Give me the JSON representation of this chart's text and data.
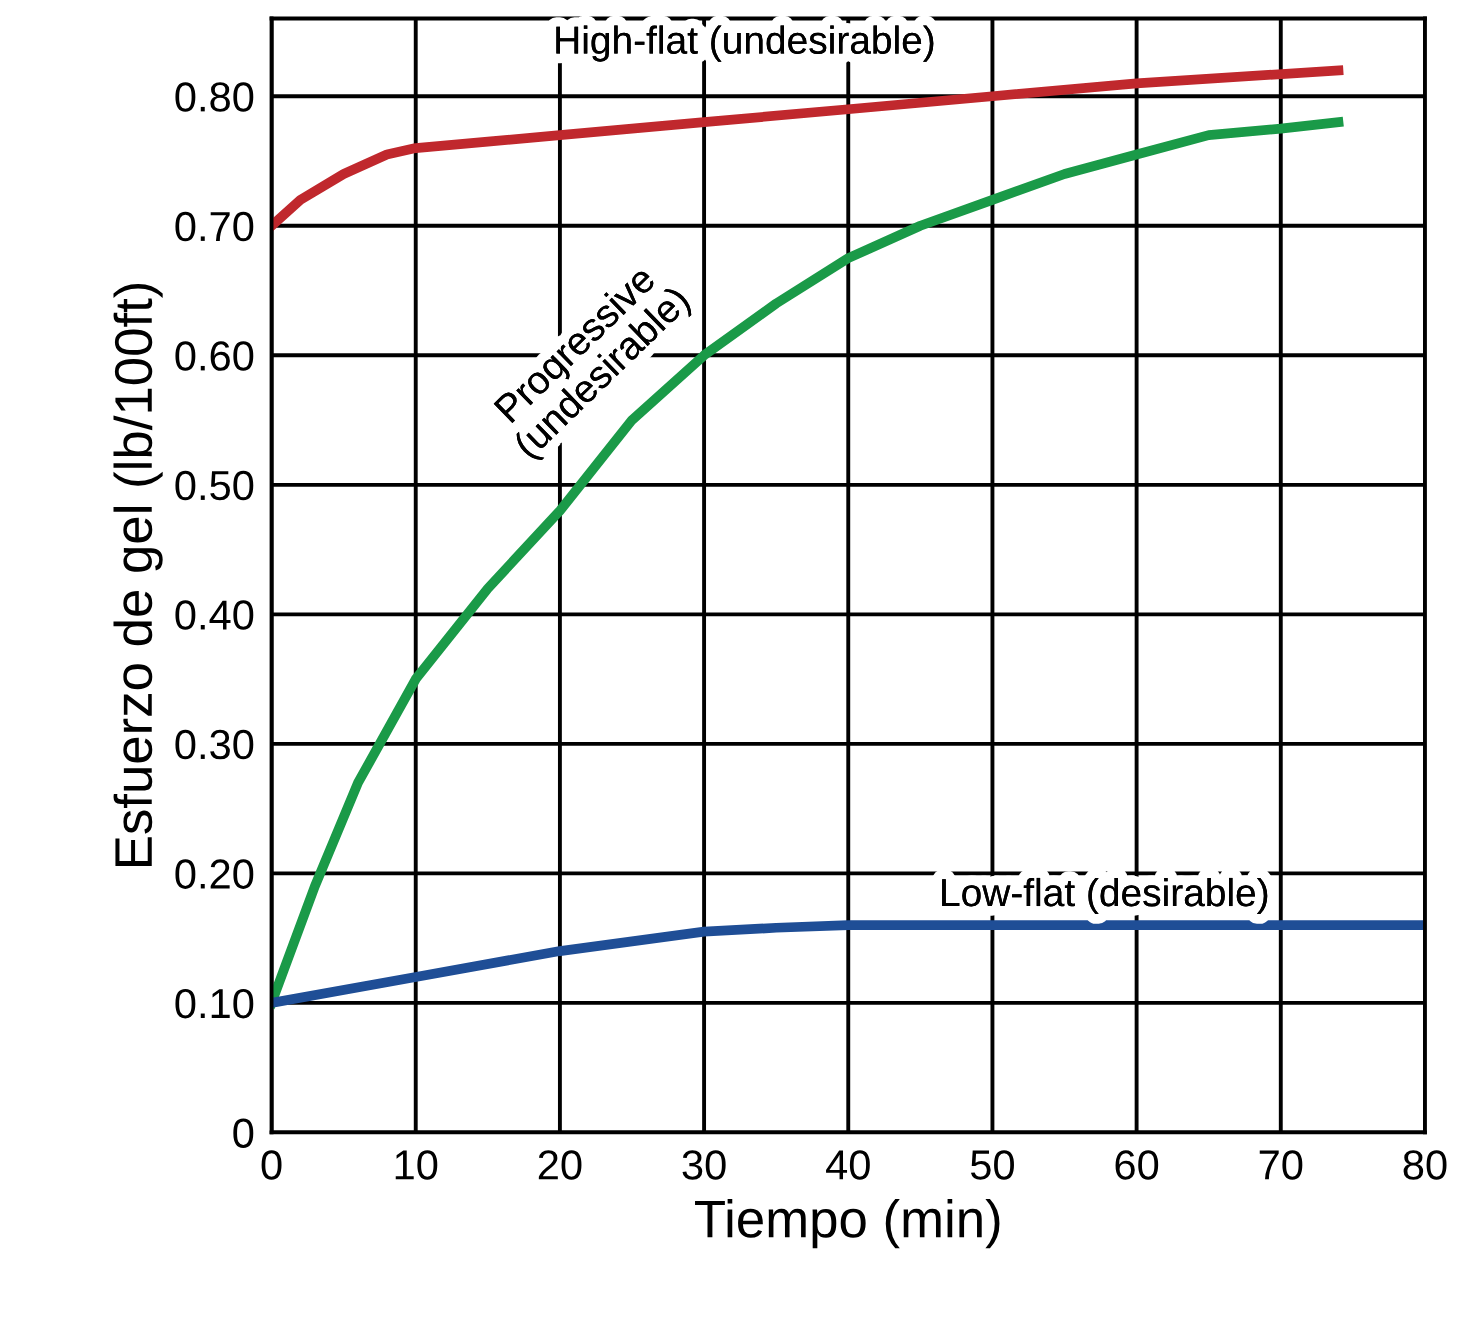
{
  "chart_data": {
    "type": "line",
    "xlabel": "Tiempo (min)",
    "ylabel": "Esfuerzo de gel (lb/100ft)",
    "series": [
      {
        "name": "High-flat (undesirable)",
        "color": "#c0282d",
        "x": [
          0,
          2,
          5,
          8,
          10,
          15,
          20,
          30,
          40,
          50,
          60,
          74
        ],
        "values": [
          0.7,
          0.72,
          0.74,
          0.755,
          0.76,
          0.765,
          0.77,
          0.78,
          0.79,
          0.8,
          0.81,
          0.82
        ]
      },
      {
        "name": "Progressive\n(undesirable)",
        "color": "#1a9a48",
        "x": [
          0,
          3,
          6,
          10,
          15,
          20,
          25,
          30,
          35,
          40,
          45,
          50,
          55,
          60,
          65,
          70,
          74
        ],
        "values": [
          0.1,
          0.19,
          0.27,
          0.35,
          0.42,
          0.48,
          0.55,
          0.6,
          0.64,
          0.675,
          0.7,
          0.72,
          0.74,
          0.755,
          0.77,
          0.775,
          0.78
        ]
      },
      {
        "name": "Low-flat (desirable)",
        "color": "#1f4e96",
        "x": [
          0,
          10,
          20,
          30,
          35,
          40,
          50,
          60,
          70,
          80
        ],
        "values": [
          0.1,
          0.12,
          0.14,
          0.155,
          0.158,
          0.16,
          0.16,
          0.16,
          0.16,
          0.16
        ]
      }
    ],
    "xlim": [
      0,
      80
    ],
    "xticks": [
      0,
      10,
      20,
      30,
      40,
      50,
      60,
      70,
      80
    ],
    "ylim": [
      0,
      0.86
    ],
    "yticks": [
      0,
      {
        "value": 0.1,
        "label": "0.10"
      },
      {
        "value": 0.2,
        "label": "0.20"
      },
      {
        "value": 0.3,
        "label": "0.30"
      },
      {
        "value": 0.4,
        "label": "0.40"
      },
      {
        "value": 0.5,
        "label": "0.50"
      },
      {
        "value": 0.6,
        "label": "0.60"
      },
      {
        "value": 0.7,
        "label": "0.70"
      },
      {
        "value": 0.8,
        "label": "0.80"
      }
    ],
    "grid": true,
    "marker": "none",
    "line_style": "solid"
  }
}
